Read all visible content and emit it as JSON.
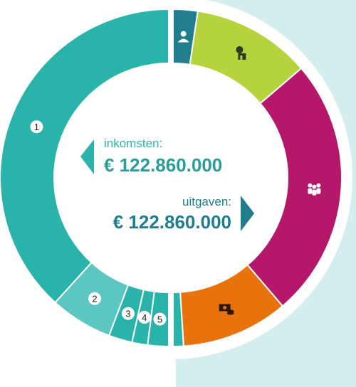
{
  "center": {
    "income_label": "inkomsten:",
    "income_value": "€ 122.860.000",
    "expense_label": "uitgaven:",
    "expense_value": "€ 122.860.000"
  },
  "colors": {
    "income": "#2ab3ab",
    "income_light": "#5cc6c0",
    "expense_teal": "#1f7d8c",
    "expense_green": "#b5d33d",
    "expense_magenta": "#b5186b",
    "expense_orange": "#e8720c",
    "right_background": "#d4eeee"
  },
  "chart_data": [
    {
      "type": "pie",
      "variant": "half-donut-left",
      "categories": [
        "1",
        "2",
        "3",
        "4",
        "5"
      ],
      "values": [
        76.5,
        12.0,
        4.5,
        3.0,
        4.0
      ],
      "colors": [
        "#2ab3ab",
        "#5cc6c0",
        "#2ab3ab",
        "#2ab3ab",
        "#2ab3ab"
      ],
      "labeled": [
        true,
        true,
        true,
        true,
        true
      ]
    },
    {
      "type": "pie",
      "variant": "half-donut-right",
      "categories": [
        "",
        "",
        "",
        "",
        ""
      ],
      "values": [
        4.7,
        22.8,
        50.0,
        20.5,
        2.0
      ],
      "colors": [
        "#1f7d8c",
        "#b5d33d",
        "#b5186b",
        "#e8720c",
        "#2ab3ab"
      ],
      "icons": [
        "community-icon",
        "housing-icon",
        "family-icon",
        "money-icon",
        ""
      ]
    }
  ]
}
